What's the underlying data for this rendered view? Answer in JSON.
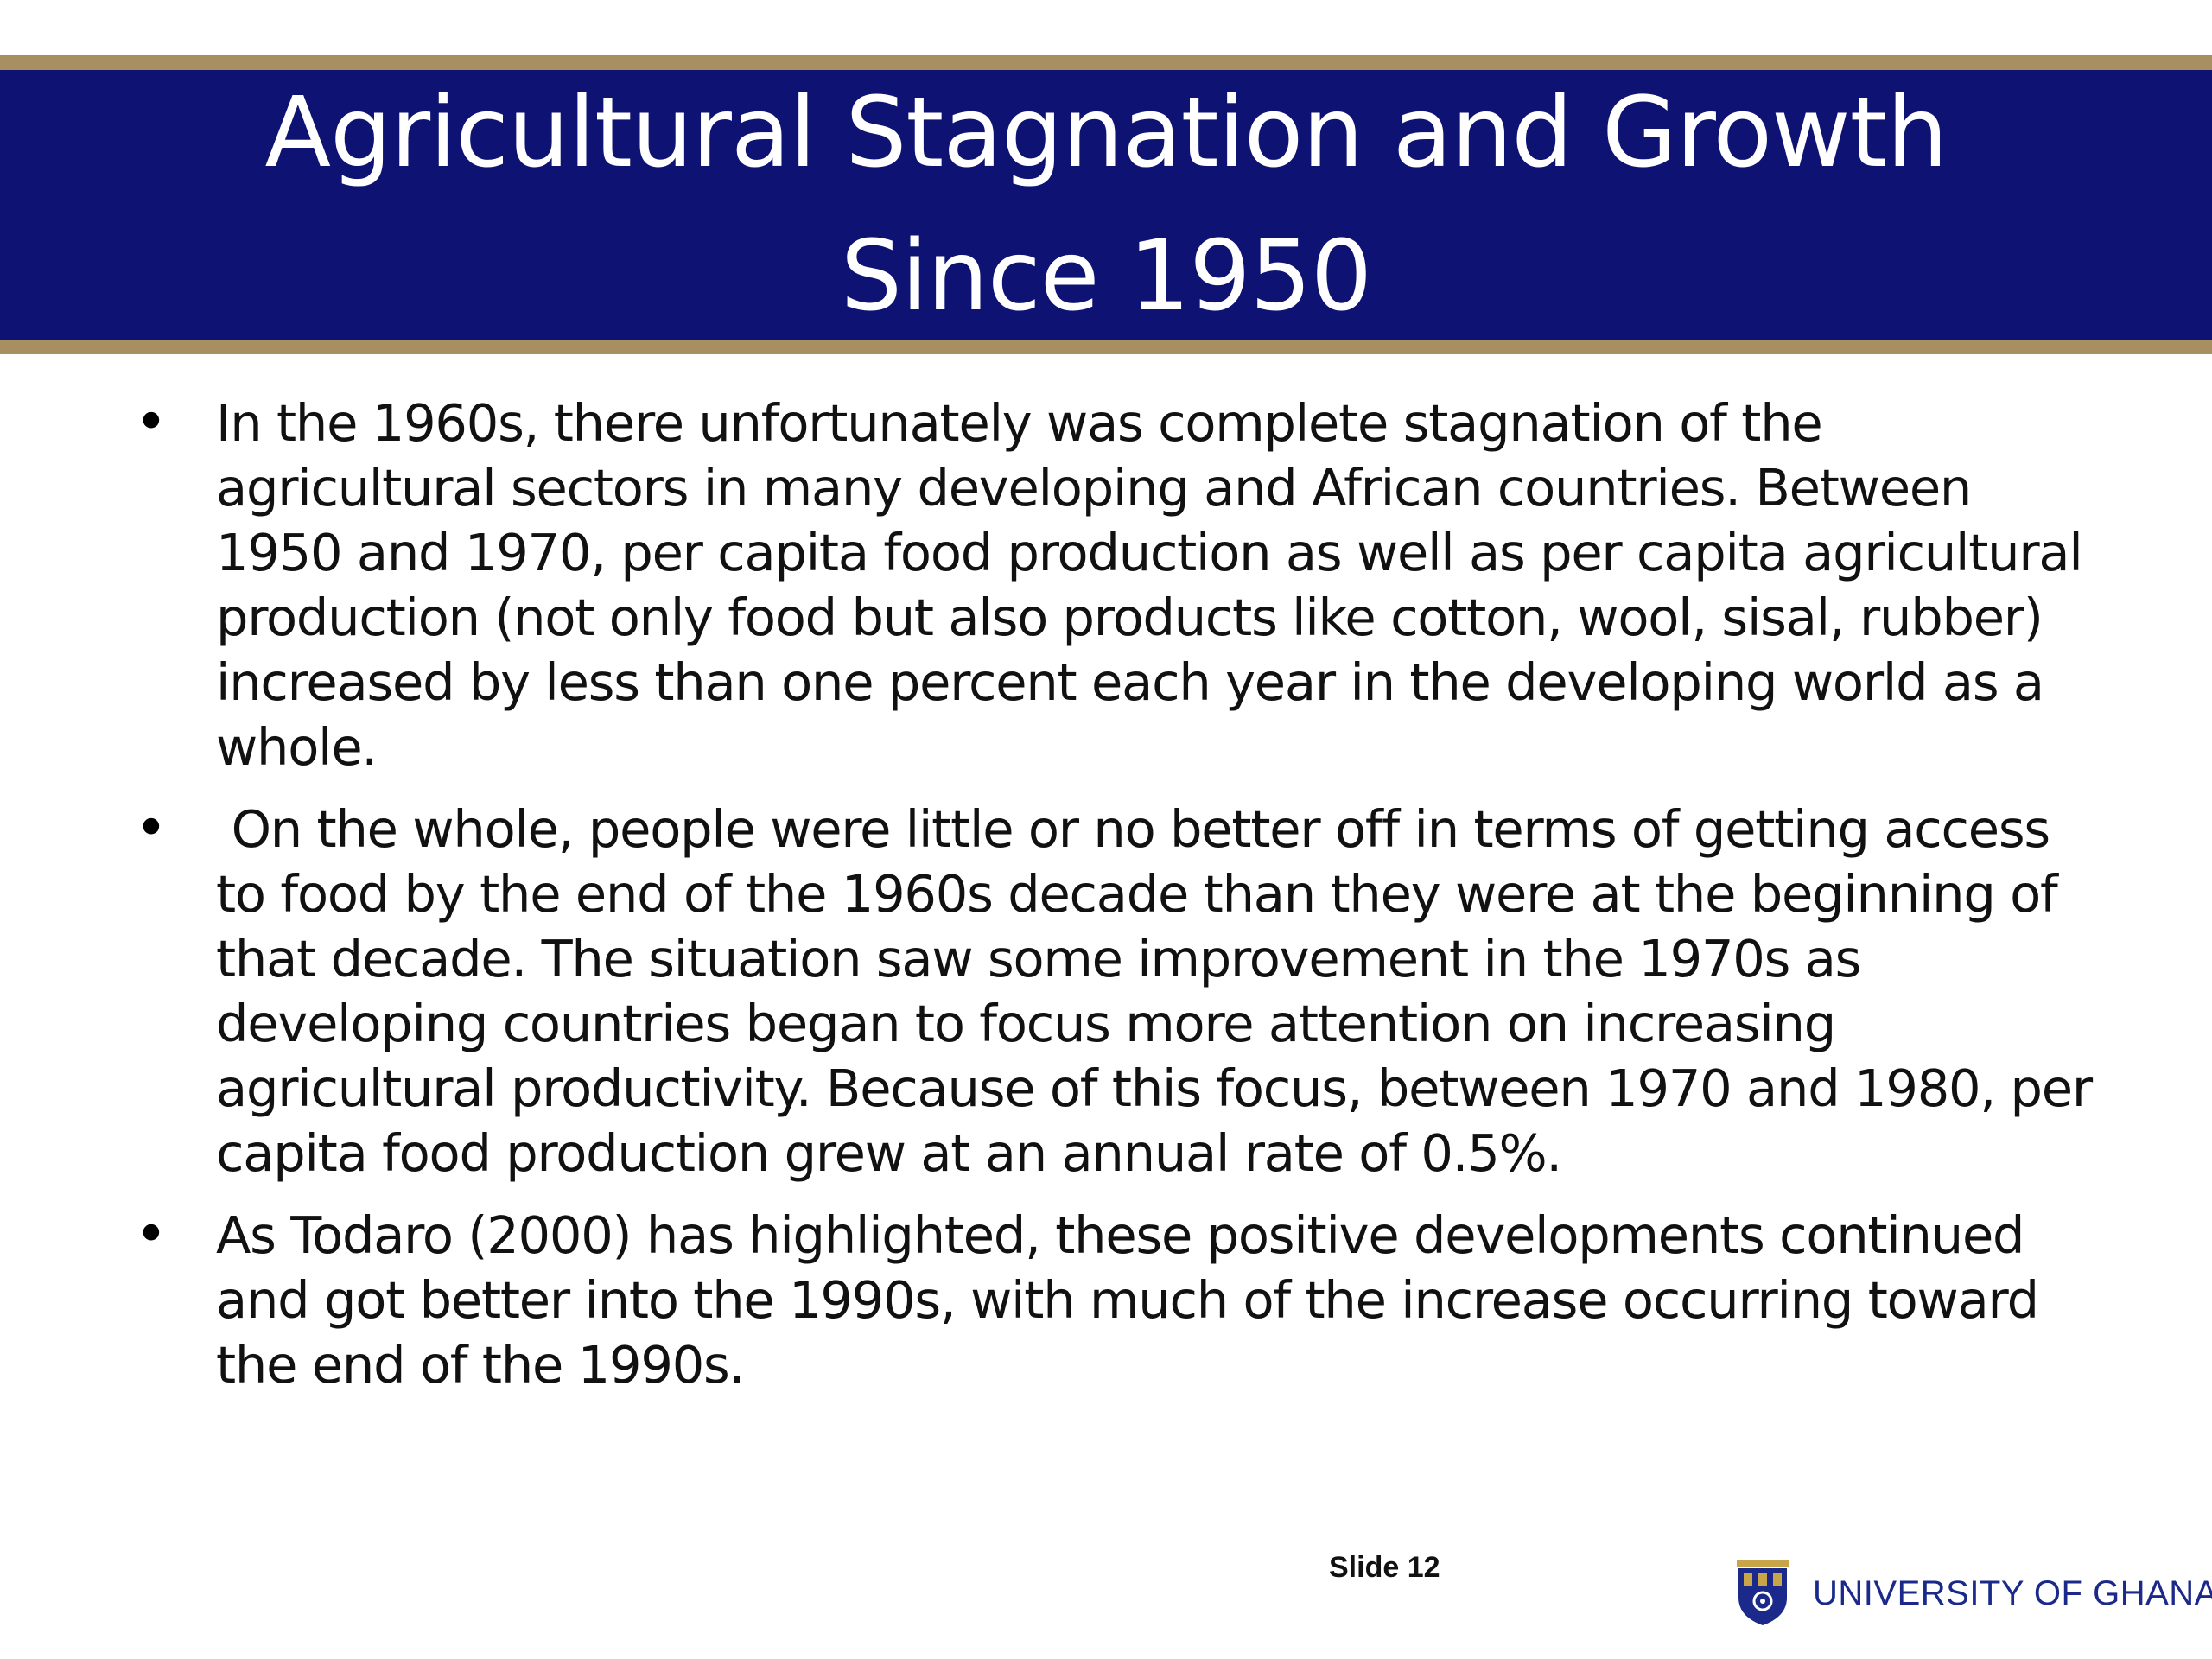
{
  "slide": {
    "title_line_1": "Agricultural Stagnation and Growth",
    "title_line_2": "Since 1950",
    "bullets": [
      "In the 1960s, there unfortunately was complete stagnation of the agricultural sectors in many developing and African countries. Between 1950 and 1970, per capita food production as well as per capita agricultural production (not only food but also products like cotton, wool, sisal, rubber) increased by less than one percent each year in the developing world as a whole.",
      " On the whole, people were little or no better off in terms of getting access to food by the end of the 1960s decade than they were at the beginning of that decade. The situation saw some improvement in the 1970s as developing countries began to focus more attention on increasing agricultural productivity. Because of this focus, between 1970 and 1980, per capita food production grew at an annual rate of 0.5%.",
      "As Todaro (2000) has highlighted, these positive developments continued and got better into the 1990s, with much of the increase occurring toward the end of the 1990s."
    ],
    "bullet_glyph": "•",
    "slide_number": "Slide 12",
    "institution": "UNIVERSITY OF GHANA"
  },
  "colors": {
    "title_band": "#0d1273",
    "accent_gold": "#a88f62",
    "title_text": "#ffffff",
    "logo_text": "#1b2a8a"
  },
  "icons": {
    "logo": "university-crest-icon"
  }
}
